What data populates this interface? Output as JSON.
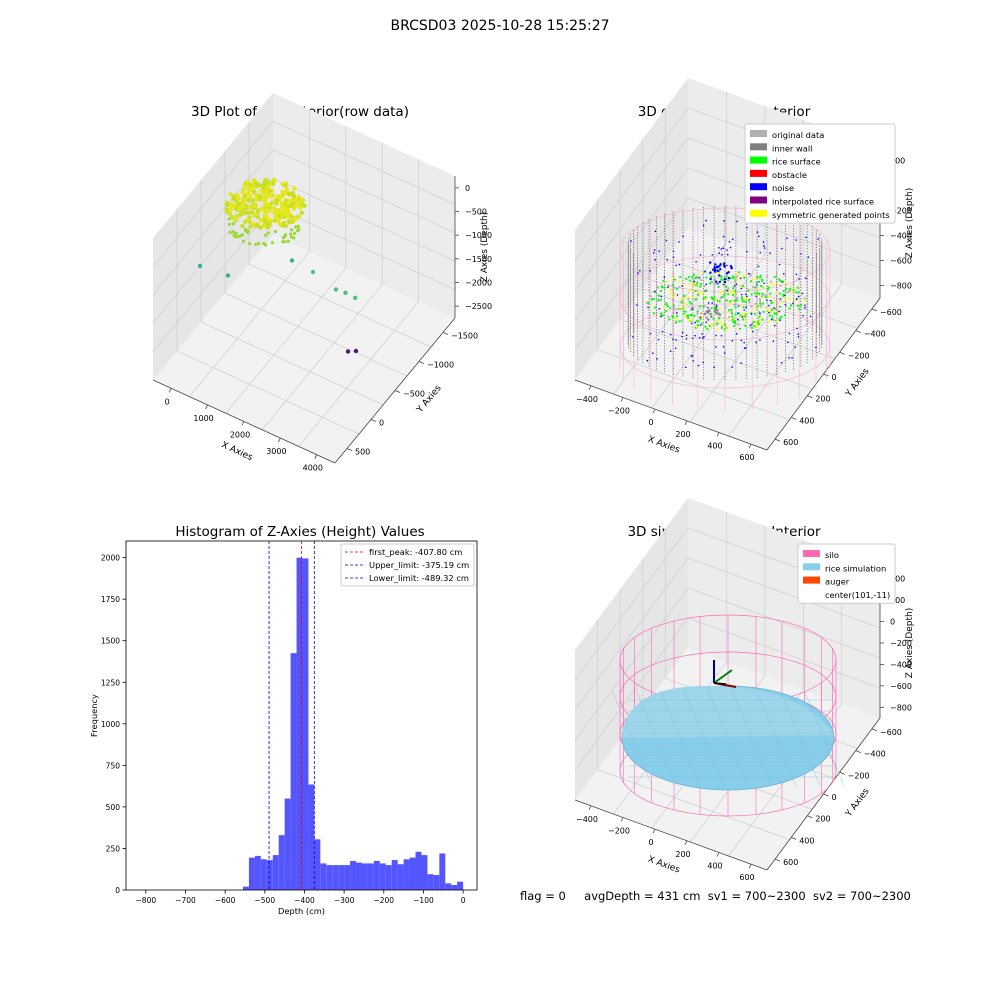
{
  "suptitle": "BRCSD03 2025-10-28 15:25:27",
  "footer": {
    "flag": "flag = 0",
    "avg_depth": "avgDepth = 431 cm",
    "sv1": "sv1 = 700~2300",
    "sv2": "sv2 = 700~2300"
  },
  "colors": {
    "histogram_bar": "#5555ff",
    "first_peak": "#dd0000",
    "limits": "#0000cc",
    "silo": "#ff69b4",
    "rice_simulation": "#87ceeb",
    "auger": "#ff4500",
    "rice_surface": "#00ff00",
    "noise": "#0000ff",
    "inner_wall": "#808080",
    "symmetric": "#ffff00",
    "interpolated": "#800080",
    "original": "#b0b0b0",
    "obstacle": "#ff0000"
  },
  "chart_data": [
    {
      "type": "scatter",
      "subtype": "3d-scatter",
      "title": "3D Plot of Silo Interior(row data)",
      "xlabel": "X Axies",
      "ylabel": "Y Axies",
      "zlabel": "Z Axies (Depth)",
      "x_ticks": [
        "0",
        "1000",
        "2000",
        "3000",
        "4000"
      ],
      "y_ticks": [
        "500",
        "0",
        "−500",
        "−1000",
        "−1500"
      ],
      "z_ticks": [
        "0",
        "−500",
        "−1000",
        "−1500",
        "−2000",
        "−2500"
      ],
      "points": [
        {
          "x": 100,
          "y": 1500,
          "z": -1900
        },
        {
          "x": 800,
          "y": 800,
          "z": -1800
        },
        {
          "x": 2200,
          "y": 200,
          "z": -1200
        },
        {
          "x": 2600,
          "y": 300,
          "z": -1500
        },
        {
          "x": 3100,
          "y": 100,
          "z": -1800
        },
        {
          "x": 3300,
          "y": 50,
          "z": -1850
        },
        {
          "x": 3500,
          "y": 20,
          "z": -1950
        },
        {
          "x": 3600,
          "y": -1200,
          "z": -2600
        },
        {
          "x": 3800,
          "y": -1400,
          "z": -2500
        }
      ],
      "grid": true
    },
    {
      "type": "scatter",
      "subtype": "3d-scatter",
      "title": "3D classify of Silo Interior",
      "xlabel": "X Axies",
      "ylabel": "Y Axies",
      "zlabel": "Z Axies (Depth)",
      "x_ticks": [
        "−400",
        "−200",
        "0",
        "200",
        "400",
        "600"
      ],
      "y_ticks": [
        "600",
        "400",
        "200",
        "0",
        "−200",
        "−400",
        "−600"
      ],
      "z_ticks": [
        "200",
        "0",
        "−200",
        "−400",
        "−600",
        "−800"
      ],
      "legend_position": "top-right",
      "legend": [
        {
          "label": "original data",
          "color_key": "original"
        },
        {
          "label": "inner wall",
          "color_key": "inner_wall"
        },
        {
          "label": "rice surface",
          "color_key": "rice_surface"
        },
        {
          "label": "obstacle",
          "color_key": "obstacle"
        },
        {
          "label": "noise",
          "color_key": "noise"
        },
        {
          "label": "interpolated rice surface",
          "color_key": "interpolated"
        },
        {
          "label": "symmetric generated points",
          "color_key": "symmetric"
        }
      ],
      "grid": true
    },
    {
      "type": "bar",
      "subtype": "histogram",
      "title": "Histogram of Z-Axies (Height) Values",
      "xlabel": "Depth (cm)",
      "ylabel": "Frequency",
      "xlim": [
        -850,
        35
      ],
      "ylim": [
        0,
        2100
      ],
      "x_ticks": [
        -800,
        -700,
        -600,
        -500,
        -400,
        -300,
        -200,
        -100,
        0
      ],
      "x_tick_labels": [
        "−800",
        "−700",
        "−600",
        "−500",
        "−400",
        "−300",
        "−200",
        "−100",
        "0"
      ],
      "y_ticks": [
        0,
        250,
        500,
        750,
        1000,
        1250,
        1500,
        1750,
        2000
      ],
      "bin_width": 15,
      "bins_start": [
        -555,
        -540,
        -525,
        -510,
        -495,
        -480,
        -465,
        -450,
        -435,
        -420,
        -405,
        -390,
        -375,
        -360,
        -345,
        -330,
        -315,
        -300,
        -285,
        -270,
        -255,
        -240,
        -225,
        -210,
        -195,
        -180,
        -165,
        -150,
        -135,
        -120,
        -105,
        -90,
        -75,
        -60,
        -45,
        -30,
        -15
      ],
      "values": [
        20,
        195,
        205,
        185,
        180,
        210,
        330,
        550,
        1425,
        2000,
        1995,
        635,
        305,
        160,
        150,
        150,
        150,
        150,
        175,
        165,
        160,
        160,
        175,
        160,
        150,
        180,
        155,
        185,
        195,
        230,
        210,
        95,
        90,
        220,
        40,
        30,
        50
      ],
      "lines": [
        {
          "label": "first_peak: -407.80 cm",
          "x": -407.8,
          "color_key": "first_peak"
        },
        {
          "label": "Upper_limit: -375.19 cm",
          "x": -375.19,
          "color_key": "limits"
        },
        {
          "label": "Lower_limit: -489.32 cm",
          "x": -489.32,
          "color_key": "limits"
        }
      ],
      "legend_position": "top-right"
    },
    {
      "type": "scatter",
      "subtype": "3d-surface",
      "title": "3D simulation of Silo Interior",
      "xlabel": "X Axies",
      "ylabel": "Y Axies",
      "zlabel": "Z Axies (Depth)",
      "x_ticks": [
        "−400",
        "−200",
        "0",
        "200",
        "400",
        "600"
      ],
      "y_ticks": [
        "600",
        "400",
        "200",
        "0",
        "−200",
        "−400",
        "−600"
      ],
      "z_ticks": [
        "400",
        "200",
        "0",
        "−200",
        "−400",
        "−600",
        "−800"
      ],
      "legend_position": "top-right",
      "legend": [
        {
          "label": "silo",
          "color_key": "silo",
          "swatch": true
        },
        {
          "label": "rice simulation",
          "color_key": "rice_simulation",
          "swatch": true
        },
        {
          "label": "auger",
          "color_key": "auger",
          "swatch": true
        },
        {
          "label": "center(101,-11)",
          "color_key": "",
          "swatch": false
        }
      ],
      "grid": true
    }
  ]
}
